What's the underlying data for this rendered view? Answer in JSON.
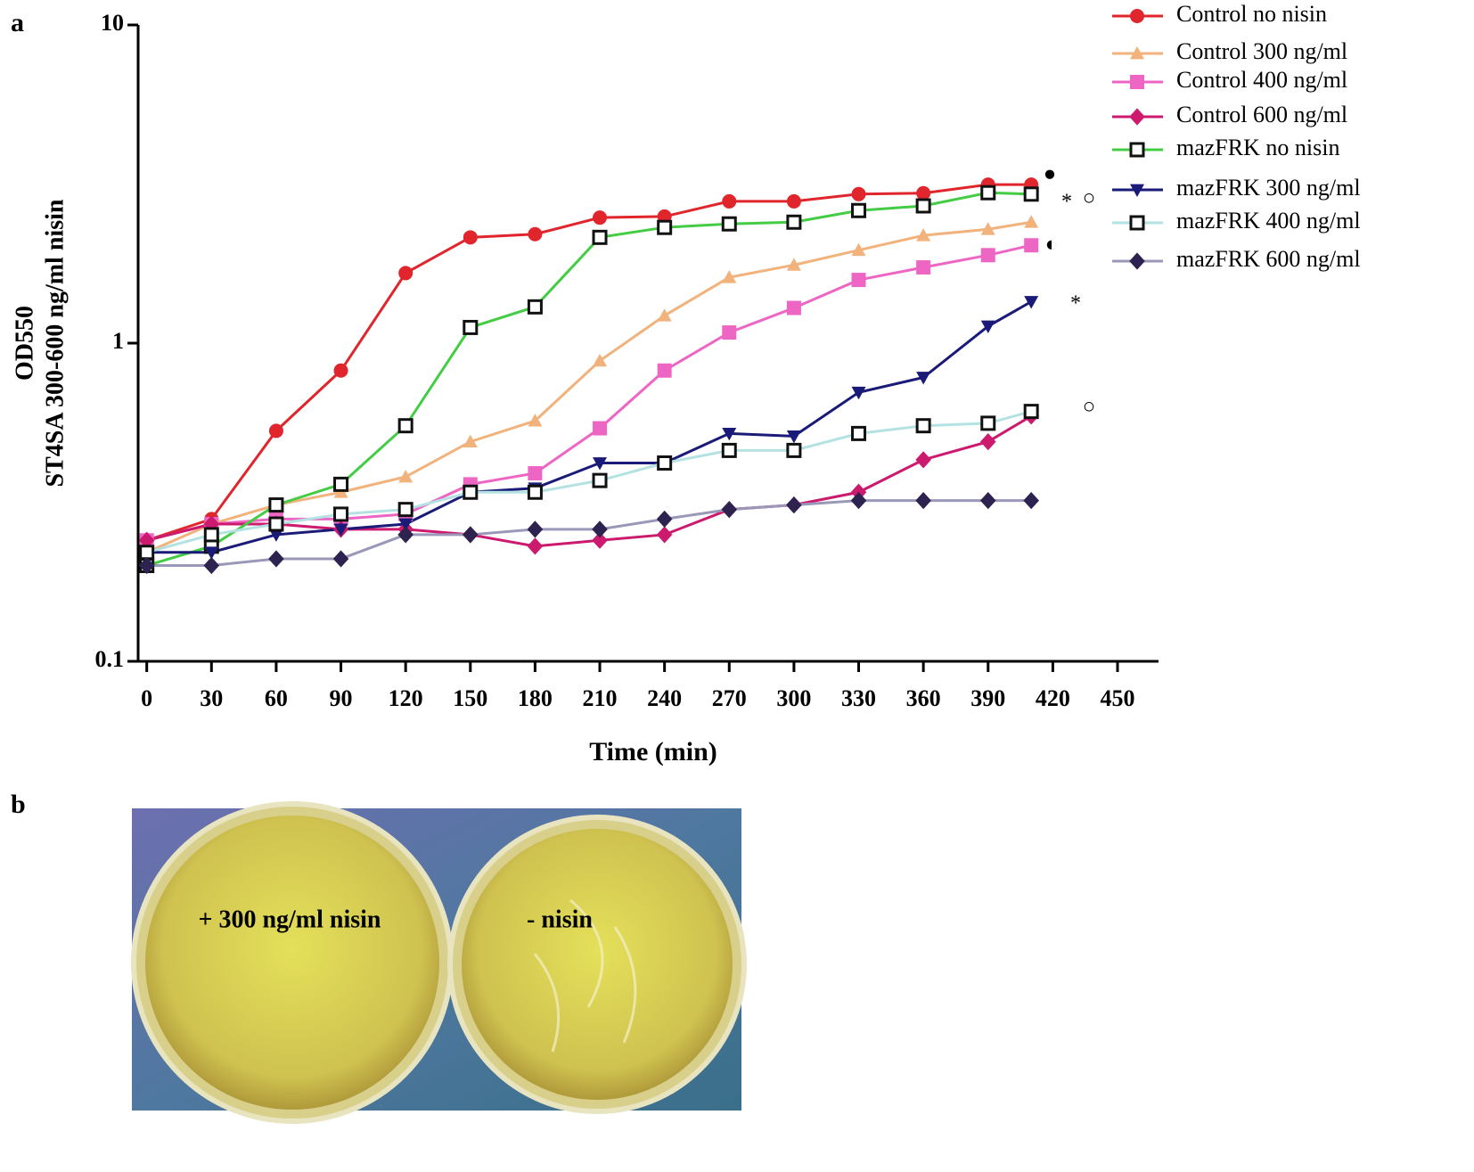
{
  "panel_labels": [
    "a",
    "b"
  ],
  "chart_data": {
    "type": "line",
    "y_label": "OD550",
    "y_label_2": "ST4SA 300-600 ng/ml nisin",
    "x_label": "Time (min)",
    "x": [
      0,
      30,
      60,
      90,
      120,
      150,
      180,
      210,
      240,
      270,
      300,
      330,
      360,
      390,
      410
    ],
    "xlim": [
      -4,
      469
    ],
    "xticks": [
      0,
      30,
      60,
      90,
      120,
      150,
      180,
      210,
      240,
      270,
      300,
      330,
      360,
      390,
      420,
      450
    ],
    "ylim": [
      0.1,
      10
    ],
    "yticks": [
      0.1,
      1,
      10
    ],
    "log_y": true,
    "legend": "top-right",
    "series": [
      {
        "name": "Control no nisin",
        "color": "#e0262c",
        "marker": "circle",
        "marker_color": "#e0262c",
        "values": [
          0.24,
          0.28,
          0.53,
          0.82,
          1.66,
          2.15,
          2.2,
          2.48,
          2.5,
          2.79,
          2.79,
          2.94,
          2.96,
          3.15,
          3.15
        ]
      },
      {
        "name": "Control 300 ng/ml",
        "color": "#f2b27c",
        "marker": "triangle",
        "marker_color": "#f2b27c",
        "values": [
          0.22,
          0.27,
          0.31,
          0.34,
          0.38,
          0.49,
          0.57,
          0.88,
          1.22,
          1.61,
          1.76,
          1.96,
          2.18,
          2.28,
          2.4
        ]
      },
      {
        "name": "Control 400 ng/ml",
        "color": "#ee66c4",
        "marker": "square",
        "marker_color": "#ee66c4",
        "values": [
          0.24,
          0.27,
          0.28,
          0.28,
          0.29,
          0.36,
          0.39,
          0.54,
          0.82,
          1.08,
          1.29,
          1.58,
          1.73,
          1.89,
          2.03
        ]
      },
      {
        "name": "Control 600 ng/ml",
        "color": "#cc1a6e",
        "marker": "diamond",
        "marker_color": "#cc1a6e",
        "values": [
          0.24,
          0.27,
          0.27,
          0.26,
          0.26,
          0.25,
          0.23,
          0.24,
          0.25,
          0.3,
          0.31,
          0.34,
          0.43,
          0.49,
          0.59
        ]
      },
      {
        "name": "mazFRK no nisin",
        "color": "#44cc44",
        "marker": "open-square",
        "marker_color": "#111111",
        "values": [
          0.2,
          0.23,
          0.31,
          0.36,
          0.55,
          1.12,
          1.3,
          2.15,
          2.31,
          2.37,
          2.4,
          2.61,
          2.7,
          2.97,
          2.94
        ]
      },
      {
        "name": "mazFRK 300 ng/ml",
        "color": "#1a1a78",
        "marker": "down-triangle",
        "marker_color": "#1a1a78",
        "values": [
          0.22,
          0.22,
          0.25,
          0.26,
          0.27,
          0.34,
          0.35,
          0.42,
          0.42,
          0.52,
          0.51,
          0.7,
          0.78,
          1.13,
          1.35
        ]
      },
      {
        "name": "mazFRK 400 ng/ml",
        "color": "#b4e2e2",
        "marker": "open-square",
        "marker_color": "#111111",
        "values": [
          0.22,
          0.25,
          0.27,
          0.29,
          0.3,
          0.34,
          0.34,
          0.37,
          0.42,
          0.46,
          0.46,
          0.52,
          0.55,
          0.56,
          0.61
        ]
      },
      {
        "name": "mazFRK 600 ng/ml",
        "color": "#9a98b8",
        "marker": "diamond",
        "marker_color": "#2e2350",
        "values": [
          0.2,
          0.2,
          0.21,
          0.21,
          0.25,
          0.25,
          0.26,
          0.26,
          0.28,
          0.3,
          0.31,
          0.32,
          0.32,
          0.32,
          0.32
        ]
      }
    ],
    "annotations": [
      "●",
      "*",
      "○",
      "◐",
      "*",
      "○"
    ]
  },
  "photo": {
    "plate_labels": [
      "+ 300 ng/ml nisin",
      "- nisin"
    ]
  }
}
